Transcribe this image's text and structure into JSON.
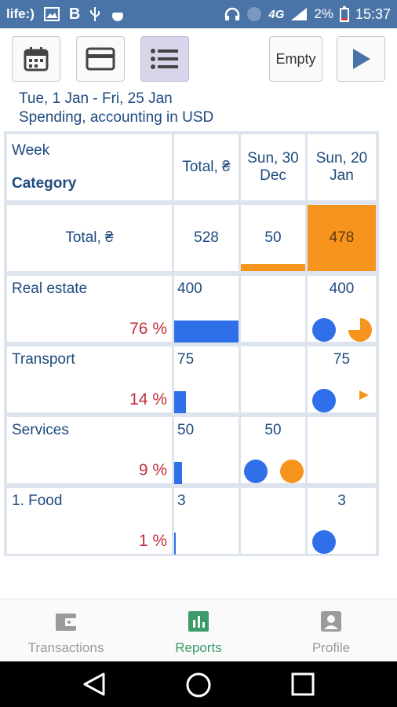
{
  "status": {
    "carrier": "life:)",
    "battery": "2%",
    "time": "15:37",
    "network": "4G"
  },
  "toolbar": {
    "empty_label": "Empty"
  },
  "range": {
    "dates": "Tue, 1 Jan - Fri, 25 Jan",
    "mode": "Spending, accounting in USD"
  },
  "table": {
    "hdr_week": "Week",
    "hdr_category": "Category",
    "hdr_total": "Total, ₴",
    "col1": "Sun, 30",
    "col1b": "Dec",
    "col2": "Sun, 20",
    "col2b": "Jan",
    "total_label": "Total, ₴",
    "total_value": "528",
    "total_c1": "50",
    "total_c2": "478",
    "rows": [
      {
        "name": "Real estate",
        "total": "400",
        "c1": "",
        "c2": "400",
        "pct": "76 %",
        "share": 0.76
      },
      {
        "name": "Transport",
        "total": "75",
        "c1": "",
        "c2": "75",
        "pct": "14 %",
        "share": 0.14
      },
      {
        "name": "Services",
        "total": "50",
        "c1": "50",
        "c2": "",
        "pct": "9 %",
        "share": 0.09
      },
      {
        "name": "1. Food",
        "total": "3",
        "c1": "",
        "c2": "3",
        "pct": "1 %",
        "share": 0.01
      }
    ]
  },
  "nav": {
    "transactions": "Transactions",
    "reports": "Reports",
    "profile": "Profile"
  },
  "colors": {
    "accent_blue": "#2f6fea",
    "accent_orange": "#f7941d",
    "header_text": "#1e4a7e",
    "percent_red": "#c0303a",
    "nav_active": "#3a9a6a"
  }
}
